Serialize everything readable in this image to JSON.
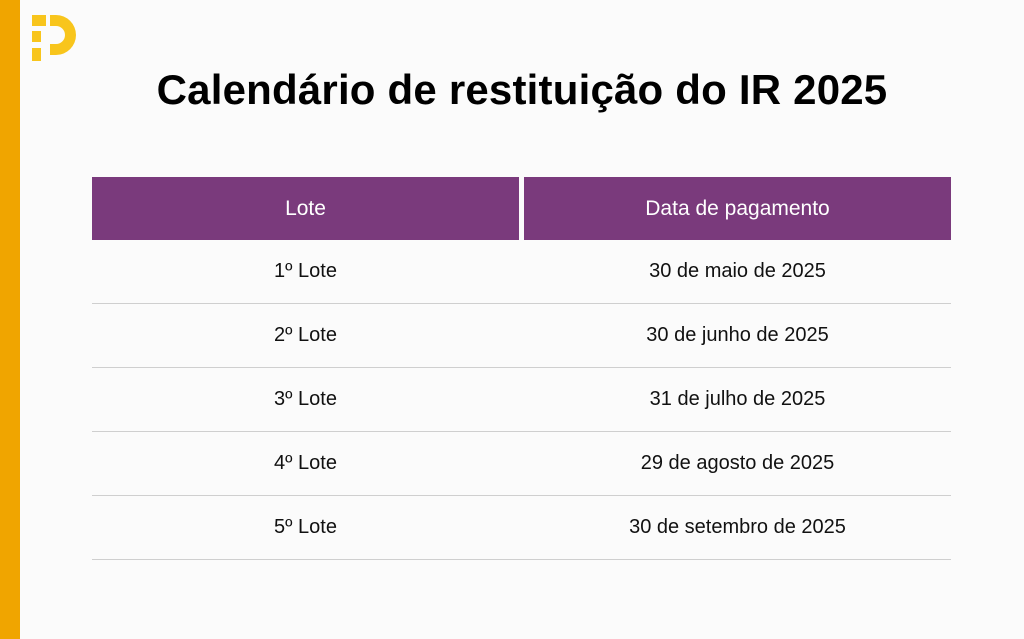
{
  "brand": {
    "stripe_color": "#f0a500",
    "logo_color": "#f8c51c",
    "logo_icon": "p-logo-icon"
  },
  "title": "Calendário de restituição do IR 2025",
  "table": {
    "header_color": "#7a3a7c",
    "headers": [
      "Lote",
      "Data de pagamento"
    ],
    "rows": [
      {
        "lote": "1º Lote",
        "data": "30 de maio de 2025"
      },
      {
        "lote": "2º Lote",
        "data": "30 de junho de 2025"
      },
      {
        "lote": "3º Lote",
        "data": "31 de julho de 2025"
      },
      {
        "lote": "4º Lote",
        "data": "29 de agosto de 2025"
      },
      {
        "lote": "5º Lote",
        "data": "30 de setembro de 2025"
      }
    ]
  }
}
